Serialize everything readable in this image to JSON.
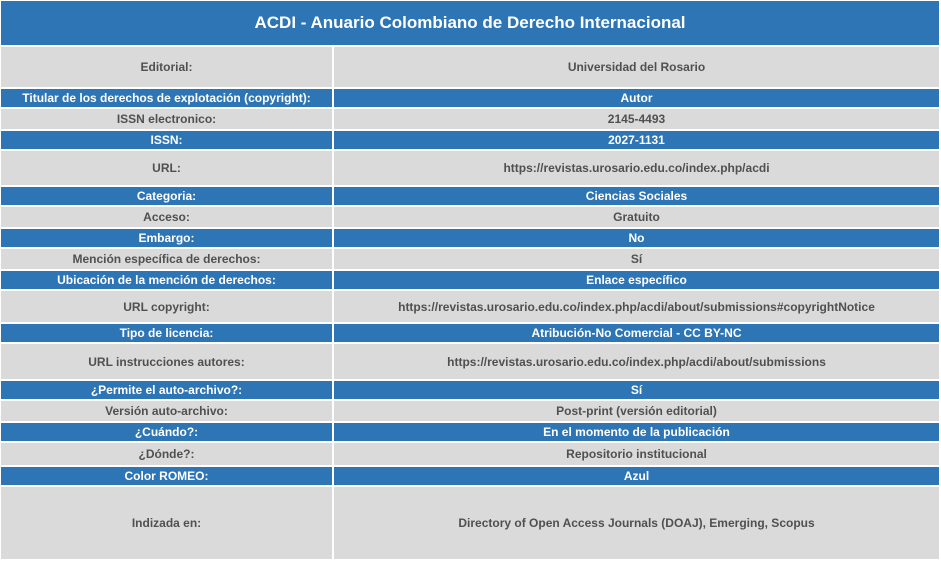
{
  "title": "ACDI - Anuario Colombiano de Derecho Internacional",
  "rows": [
    {
      "label": "Editorial:",
      "value": "Universidad del Rosario",
      "style": "light"
    },
    {
      "label": "Titular de los derechos de explotación (copyright):",
      "value": "Autor",
      "style": "blue"
    },
    {
      "label": "ISSN electronico:",
      "value": "2145-4493",
      "style": "light"
    },
    {
      "label": "ISSN:",
      "value": "2027-1131",
      "style": "blue"
    },
    {
      "label": "URL:",
      "value": "https://revistas.urosario.edu.co/index.php/acdi",
      "style": "light"
    },
    {
      "label": "Categoria:",
      "value": "Ciencias Sociales",
      "style": "blue"
    },
    {
      "label": "Acceso:",
      "value": "Gratuito",
      "style": "light"
    },
    {
      "label": "Embargo:",
      "value": "No",
      "style": "blue"
    },
    {
      "label": "Mención específica de derechos:",
      "value": "Sí",
      "style": "light"
    },
    {
      "label": "Ubicación de la mención de derechos:",
      "value": "Enlace específico",
      "style": "blue"
    },
    {
      "label": "URL copyright:",
      "value": "https://revistas.urosario.edu.co/index.php/acdi/about/submissions#copyrightNotice",
      "style": "light"
    },
    {
      "label": "Tipo de licencia:",
      "value": "Atribución-No Comercial - CC BY-NC",
      "style": "blue"
    },
    {
      "label": "URL instrucciones autores:",
      "value": "https://revistas.urosario.edu.co/index.php/acdi/about/submissions",
      "style": "light"
    },
    {
      "label": "¿Permite el auto-archivo?:",
      "value": "Sí",
      "style": "blue"
    },
    {
      "label": "Versión auto-archivo:",
      "value": "Post-print (versión editorial)",
      "style": "light"
    },
    {
      "label": "¿Cuándo?:",
      "value": "En el momento de la publicación",
      "style": "blue"
    },
    {
      "label": "¿Dónde?:",
      "value": "Repositorio institucional",
      "style": "light"
    },
    {
      "label": "Color ROMEO:",
      "value": "Azul",
      "style": "blue"
    },
    {
      "label": "Indizada en:",
      "value": "Directory of Open Access Journals (DOAJ), Emerging, Scopus",
      "style": "light"
    }
  ],
  "colors": {
    "header_blue": "#2e75b5",
    "row_gray": "#dadada",
    "text_gray": "#505050"
  }
}
